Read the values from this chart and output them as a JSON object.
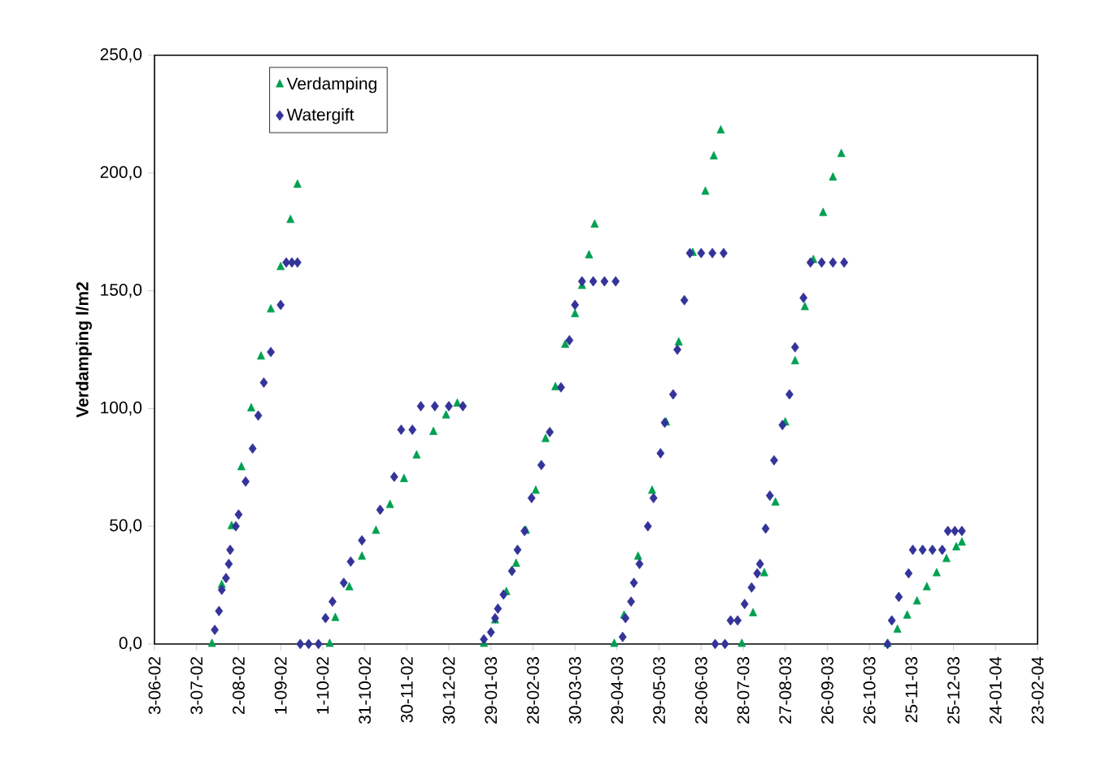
{
  "chart_data": {
    "type": "scatter",
    "ylabel": "Verdamping l/m2",
    "legend": "top left",
    "grid": false,
    "xlim": [
      "2002-06-03",
      "2004-02-23"
    ],
    "ylim": [
      0,
      250
    ],
    "xticks": [
      {
        "value": "2002-06-03",
        "label": "3-06-02"
      },
      {
        "value": "2002-07-03",
        "label": "3-07-02"
      },
      {
        "value": "2002-08-02",
        "label": "2-08-02"
      },
      {
        "value": "2002-09-01",
        "label": "1-09-02"
      },
      {
        "value": "2002-10-01",
        "label": "1-10-02"
      },
      {
        "value": "2002-10-31",
        "label": "31-10-02"
      },
      {
        "value": "2002-11-30",
        "label": "30-11-02"
      },
      {
        "value": "2002-12-30",
        "label": "30-12-02"
      },
      {
        "value": "2003-01-29",
        "label": "29-01-03"
      },
      {
        "value": "2003-02-28",
        "label": "28-02-03"
      },
      {
        "value": "2003-03-30",
        "label": "30-03-03"
      },
      {
        "value": "2003-04-29",
        "label": "29-04-03"
      },
      {
        "value": "2003-05-29",
        "label": "29-05-03"
      },
      {
        "value": "2003-06-28",
        "label": "28-06-03"
      },
      {
        "value": "2003-07-28",
        "label": "28-07-03"
      },
      {
        "value": "2003-08-27",
        "label": "27-08-03"
      },
      {
        "value": "2003-09-26",
        "label": "26-09-03"
      },
      {
        "value": "2003-10-26",
        "label": "26-10-03"
      },
      {
        "value": "2003-11-25",
        "label": "25-11-03"
      },
      {
        "value": "2003-12-25",
        "label": "25-12-03"
      },
      {
        "value": "2004-01-24",
        "label": "24-01-04"
      },
      {
        "value": "2004-02-23",
        "label": "23-02-04"
      }
    ],
    "yticks": [
      {
        "value": 0,
        "label": "0,0"
      },
      {
        "value": 50,
        "label": "50,0"
      },
      {
        "value": 100,
        "label": "100,0"
      },
      {
        "value": 150,
        "label": "150,0"
      },
      {
        "value": 200,
        "label": "200,0"
      },
      {
        "value": 250,
        "label": "250,0"
      }
    ],
    "series": [
      {
        "name": "Verdamping",
        "color": "#00a050",
        "marker": "triangle",
        "x": [
          "2002-07-14",
          "2002-07-21",
          "2002-07-28",
          "2002-08-04",
          "2002-08-11",
          "2002-08-18",
          "2002-08-25",
          "2002-09-01",
          "2002-09-08",
          "2002-09-13",
          "2002-10-06",
          "2002-10-10",
          "2002-10-20",
          "2002-10-29",
          "2002-11-08",
          "2002-11-18",
          "2002-11-28",
          "2002-12-07",
          "2002-12-19",
          "2002-12-28",
          "2003-01-05",
          "2003-01-24",
          "2003-02-01",
          "2003-02-09",
          "2003-02-16",
          "2003-02-23",
          "2003-03-02",
          "2003-03-09",
          "2003-03-16",
          "2003-03-23",
          "2003-03-30",
          "2003-04-04",
          "2003-04-09",
          "2003-04-13",
          "2003-04-27",
          "2003-05-04",
          "2003-05-14",
          "2003-05-24",
          "2003-06-03",
          "2003-06-12",
          "2003-06-22",
          "2003-07-01",
          "2003-07-07",
          "2003-07-12",
          "2003-07-27",
          "2003-08-04",
          "2003-08-12",
          "2003-08-20",
          "2003-08-27",
          "2003-09-03",
          "2003-09-10",
          "2003-09-16",
          "2003-09-23",
          "2003-09-30",
          "2003-10-06",
          "2003-11-08",
          "2003-11-15",
          "2003-11-22",
          "2003-11-29",
          "2003-12-06",
          "2003-12-13",
          "2003-12-20",
          "2003-12-27",
          "2003-12-31"
        ],
        "values": [
          0,
          25,
          50,
          75,
          100,
          122,
          142,
          160,
          180,
          195,
          0,
          11,
          24,
          37,
          48,
          59,
          70,
          80,
          90,
          97,
          102,
          0,
          10,
          22,
          34,
          48,
          65,
          87,
          109,
          127,
          140,
          152,
          165,
          178,
          0,
          12,
          37,
          65,
          94,
          128,
          166,
          192,
          207,
          218,
          0,
          13,
          30,
          60,
          94,
          120,
          143,
          163,
          183,
          198,
          208,
          0,
          6,
          12,
          18,
          24,
          30,
          36,
          41,
          43
        ]
      },
      {
        "name": "Watergift",
        "color": "#333399",
        "marker": "diamond",
        "x": [
          "2002-07-16",
          "2002-07-19",
          "2002-07-21",
          "2002-07-24",
          "2002-07-26",
          "2002-07-27",
          "2002-07-31",
          "2002-08-02",
          "2002-08-07",
          "2002-08-12",
          "2002-08-16",
          "2002-08-20",
          "2002-08-25",
          "2002-09-01",
          "2002-09-05",
          "2002-09-09",
          "2002-09-13",
          "2002-09-15",
          "2002-09-21",
          "2002-09-28",
          "2002-10-03",
          "2002-10-08",
          "2002-10-16",
          "2002-10-21",
          "2002-10-29",
          "2002-11-11",
          "2002-11-21",
          "2002-11-26",
          "2002-12-04",
          "2002-12-10",
          "2002-12-20",
          "2002-12-30",
          "2003-01-09",
          "2003-01-24",
          "2003-01-29",
          "2003-02-01",
          "2003-02-03",
          "2003-02-07",
          "2003-02-13",
          "2003-02-17",
          "2003-02-22",
          "2003-02-27",
          "2003-03-06",
          "2003-03-12",
          "2003-03-20",
          "2003-03-26",
          "2003-03-30",
          "2003-04-04",
          "2003-04-12",
          "2003-04-20",
          "2003-04-28",
          "2003-05-03",
          "2003-05-05",
          "2003-05-09",
          "2003-05-11",
          "2003-05-15",
          "2003-05-21",
          "2003-05-25",
          "2003-05-30",
          "2003-06-02",
          "2003-06-08",
          "2003-06-11",
          "2003-06-16",
          "2003-06-20",
          "2003-06-28",
          "2003-07-06",
          "2003-07-14",
          "2003-07-08",
          "2003-07-15",
          "2003-07-19",
          "2003-07-24",
          "2003-07-29",
          "2003-08-03",
          "2003-08-07",
          "2003-08-09",
          "2003-08-13",
          "2003-08-16",
          "2003-08-19",
          "2003-08-25",
          "2003-08-30",
          "2003-09-03",
          "2003-09-09",
          "2003-09-14",
          "2003-09-22",
          "2003-09-30",
          "2003-10-08",
          "2003-11-08",
          "2003-11-11",
          "2003-11-16",
          "2003-11-23",
          "2003-11-26",
          "2003-12-03",
          "2003-12-10",
          "2003-12-17",
          "2003-12-21",
          "2003-12-26",
          "2003-12-31"
        ],
        "values": [
          6,
          14,
          23,
          28,
          34,
          40,
          50,
          55,
          69,
          83,
          97,
          111,
          124,
          144,
          162,
          162,
          162,
          0,
          0,
          0,
          11,
          18,
          26,
          35,
          44,
          57,
          71,
          91,
          91,
          101,
          101,
          101,
          101,
          2,
          5,
          11,
          15,
          21,
          31,
          40,
          48,
          62,
          76,
          90,
          109,
          129,
          144,
          154,
          154,
          154,
          154,
          3,
          11,
          18,
          26,
          34,
          50,
          62,
          81,
          94,
          106,
          125,
          146,
          166,
          166,
          166,
          166,
          0,
          0,
          10,
          10,
          17,
          24,
          30,
          34,
          49,
          63,
          78,
          93,
          106,
          126,
          147,
          162,
          162,
          162,
          162,
          0,
          10,
          20,
          30,
          40,
          40,
          40,
          40,
          48,
          48,
          48
        ]
      }
    ]
  }
}
